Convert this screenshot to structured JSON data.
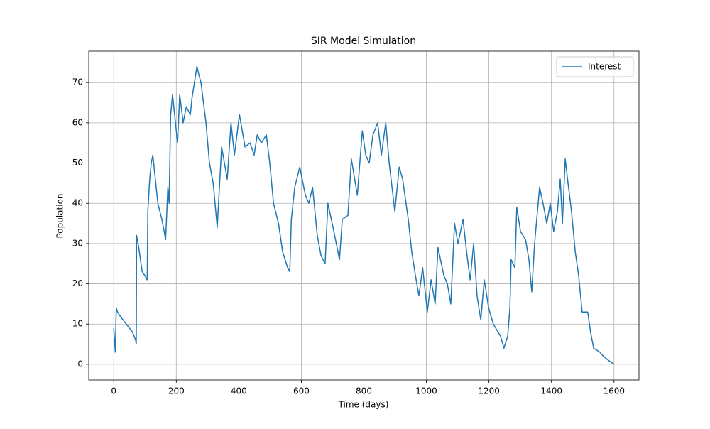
{
  "chart_data": {
    "type": "line",
    "title": "SIR Model Simulation",
    "x_label": "Time (days)",
    "y_label": "Population",
    "x": [
      0,
      5,
      8,
      12,
      20,
      30,
      40,
      50,
      60,
      70,
      72,
      73,
      80,
      91,
      100,
      107,
      109,
      115,
      120,
      125,
      141,
      154,
      166,
      173,
      177,
      182,
      188,
      204,
      211,
      222,
      232,
      245,
      250,
      266,
      272,
      279,
      295,
      306,
      318,
      331,
      345,
      363,
      375,
      386,
      402,
      420,
      436,
      449,
      459,
      472,
      488,
      499,
      511,
      527,
      540,
      556,
      563,
      568,
      579,
      595,
      613,
      624,
      636,
      651,
      663,
      676,
      685,
      704,
      722,
      731,
      749,
      760,
      779,
      795,
      806,
      817,
      829,
      844,
      856,
      870,
      881,
      899,
      913,
      924,
      942,
      953,
      965,
      976,
      988,
      1003,
      1015,
      1028,
      1037,
      1056,
      1067,
      1078,
      1090,
      1101,
      1117,
      1130,
      1140,
      1151,
      1162,
      1174,
      1185,
      1199,
      1214,
      1237,
      1248,
      1260,
      1267,
      1271,
      1283,
      1289,
      1301,
      1317,
      1328,
      1337,
      1346,
      1362,
      1373,
      1385,
      1396,
      1407,
      1419,
      1428,
      1435,
      1444,
      1453,
      1464,
      1476,
      1487,
      1498,
      1516,
      1525,
      1535,
      1555,
      1566,
      1582,
      1600
    ],
    "series": [
      {
        "name": "Interest",
        "color": "#1f77b4",
        "values": [
          9,
          3,
          14,
          13,
          12,
          11,
          10,
          9,
          8,
          6,
          5,
          32,
          29,
          23,
          22,
          21,
          38,
          46,
          50,
          52,
          40,
          36,
          31,
          44,
          40,
          62,
          67,
          55,
          67,
          60,
          64,
          62,
          66,
          74,
          72,
          70,
          60,
          50,
          45,
          34,
          54,
          46,
          60,
          52,
          62,
          54,
          55,
          52,
          57,
          55,
          57,
          50,
          40,
          35,
          28,
          24,
          23,
          36,
          44,
          49,
          42,
          40,
          44,
          32,
          27,
          25,
          40,
          33,
          26,
          36,
          37,
          51,
          42,
          58,
          52,
          50,
          57,
          60,
          52,
          60,
          50,
          38,
          49,
          46,
          36,
          28,
          22,
          17,
          24,
          13,
          21,
          15,
          29,
          22,
          20,
          15,
          35,
          30,
          36,
          27,
          21,
          30,
          17,
          11,
          21,
          14,
          10,
          7,
          4,
          7,
          14,
          26,
          24,
          39,
          33,
          31,
          26,
          18,
          30,
          44,
          40,
          35,
          40,
          33,
          38,
          46,
          35,
          51,
          45,
          38,
          28,
          22,
          13,
          13,
          8,
          4,
          3,
          2,
          1,
          0
        ]
      }
    ],
    "xlim": [
      -80,
      1680
    ],
    "ylim": [
      -3.9,
      77.8
    ],
    "xticks": [
      0,
      200,
      400,
      600,
      800,
      1000,
      1200,
      1400,
      1600
    ],
    "yticks": [
      0,
      10,
      20,
      30,
      40,
      50,
      60,
      70
    ],
    "grid": true,
    "legend_position": "upper right"
  }
}
